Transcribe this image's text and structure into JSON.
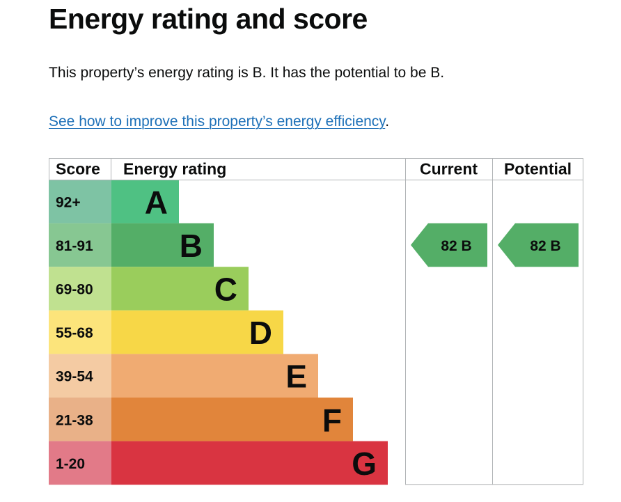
{
  "page": {
    "title": "Energy rating and score",
    "summary": "This property’s energy rating is B. It has the potential to be B.",
    "improve_link": "See how to improve this property’s energy efficiency",
    "improve_suffix": "."
  },
  "chart_data": {
    "type": "table",
    "headers": {
      "score": "Score",
      "rating": "Energy rating",
      "current": "Current",
      "potential": "Potential"
    },
    "bands": [
      {
        "letter": "A",
        "range": "92+",
        "color": "#4fc183",
        "score_color": "#7ec3a4"
      },
      {
        "letter": "B",
        "range": "81-91",
        "color": "#54ae67",
        "score_color": "#87c792"
      },
      {
        "letter": "C",
        "range": "69-80",
        "color": "#9acd5c",
        "score_color": "#c0e190"
      },
      {
        "letter": "D",
        "range": "55-68",
        "color": "#f7d747",
        "score_color": "#fce47b"
      },
      {
        "letter": "E",
        "range": "39-54",
        "color": "#f0ab72",
        "score_color": "#f4cba3"
      },
      {
        "letter": "F",
        "range": "21-38",
        "color": "#e1853b",
        "score_color": "#e9b188"
      },
      {
        "letter": "G",
        "range": "1-20",
        "color": "#d93441",
        "score_color": "#e27a88"
      }
    ],
    "current": {
      "score": 82,
      "letter": "B",
      "label": "82 B",
      "color": "#54ae67"
    },
    "potential": {
      "score": 82,
      "letter": "B",
      "label": "82 B",
      "color": "#54ae67"
    }
  }
}
